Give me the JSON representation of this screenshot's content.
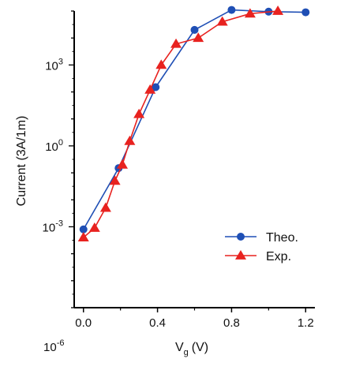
{
  "chart_data": {
    "type": "line",
    "xlabel": "V",
    "xlabel_sub": "g",
    "xlabel_unit": "(V)",
    "ylabel": "Current (3A/1m)",
    "y_scale": "log10",
    "xlim": [
      -0.05,
      1.25
    ],
    "ylim": [
      1e-06,
      100000.0
    ],
    "x_ticks": [
      0.0,
      0.4,
      0.8,
      1.2
    ],
    "x_tick_labels": [
      "0.0",
      "0.4",
      "0.8",
      "1.2"
    ],
    "y_ticks": [
      0.001,
      1,
      1000
    ],
    "y_tick_labels": [
      "10",
      "10",
      "10"
    ],
    "y_tick_exponents": [
      "-3",
      "0",
      "3"
    ],
    "y_bottom_label": "10",
    "y_bottom_exponent": "-6",
    "series": [
      {
        "name": "Theo.",
        "color": "#1f4fb5",
        "marker": "circle",
        "x": [
          0.0,
          0.19,
          0.39,
          0.6,
          0.8,
          1.0,
          1.2
        ],
        "y": [
          0.0008,
          0.15,
          150,
          20000,
          110000,
          95000,
          90000
        ]
      },
      {
        "name": "Exp.",
        "color": "#e8221f",
        "marker": "triangle",
        "x": [
          0.0,
          0.06,
          0.12,
          0.17,
          0.21,
          0.25,
          0.3,
          0.36,
          0.42,
          0.5,
          0.62,
          0.75,
          0.9,
          1.05
        ],
        "y": [
          0.0004,
          0.0009,
          0.005,
          0.05,
          0.2,
          1.5,
          15,
          120,
          1000,
          6000,
          10000,
          40000,
          80000,
          100000
        ]
      }
    ],
    "legend": "bottom-right",
    "grid": false
  }
}
